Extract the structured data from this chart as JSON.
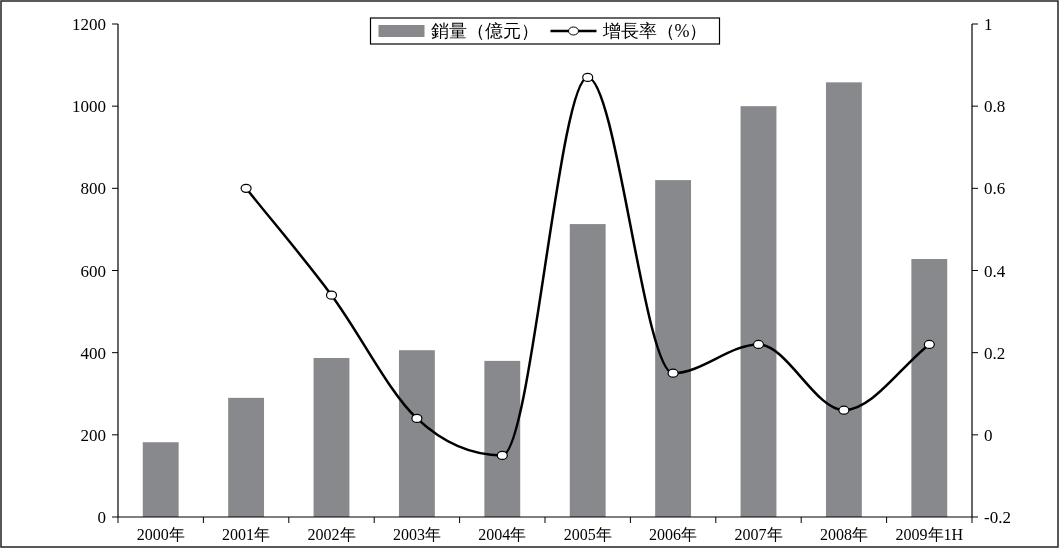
{
  "chart_data": {
    "type": "bar",
    "categories": [
      "2000年",
      "2001年",
      "2002年",
      "2003年",
      "2004年",
      "2005年",
      "2006年",
      "2007年",
      "2008年",
      "2009年1H"
    ],
    "series": [
      {
        "name": "銷量（億元）",
        "color": "#88898d",
        "values": [
          182,
          290,
          387,
          406,
          380,
          713,
          820,
          1000,
          1058,
          628
        ]
      },
      {
        "name": "增長率（%）",
        "type": "line",
        "axis": "y2",
        "color": "#000000",
        "marker": "circle",
        "values": [
          null,
          0.6,
          0.34,
          0.04,
          -0.05,
          0.87,
          0.15,
          0.22,
          0.06,
          0.22
        ]
      }
    ],
    "ylim": [
      0,
      1200
    ],
    "yticks": [
      0,
      200,
      400,
      600,
      800,
      1000,
      1200
    ],
    "y2lim": [
      -0.2,
      1
    ],
    "y2ticks": [
      -0.2,
      0,
      0.2,
      0.4,
      0.6,
      0.8,
      1
    ],
    "legend": "top",
    "grid": false
  }
}
